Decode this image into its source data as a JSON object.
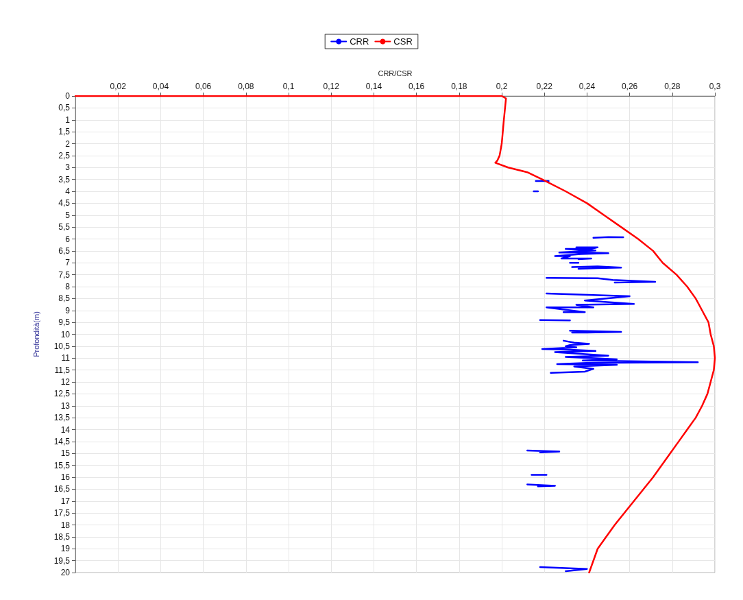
{
  "chart_data": {
    "type": "line",
    "xlabel": "CRR/CSR",
    "ylabel": "Profondità(m)",
    "xlim": [
      0,
      0.3
    ],
    "ylim": [
      20,
      0
    ],
    "xticks": [
      {
        "value": 0.02,
        "label": "0,02"
      },
      {
        "value": 0.04,
        "label": "0,04"
      },
      {
        "value": 0.06,
        "label": "0,06"
      },
      {
        "value": 0.08,
        "label": "0,08"
      },
      {
        "value": 0.1,
        "label": "0,1"
      },
      {
        "value": 0.12,
        "label": "0,12"
      },
      {
        "value": 0.14,
        "label": "0,14"
      },
      {
        "value": 0.16,
        "label": "0,16"
      },
      {
        "value": 0.18,
        "label": "0,18"
      },
      {
        "value": 0.2,
        "label": "0,2"
      },
      {
        "value": 0.22,
        "label": "0,22"
      },
      {
        "value": 0.24,
        "label": "0,24"
      },
      {
        "value": 0.26,
        "label": "0,26"
      },
      {
        "value": 0.28,
        "label": "0,28"
      },
      {
        "value": 0.3,
        "label": "0,3"
      }
    ],
    "yticks": [
      0,
      {
        "value": 0.5,
        "label": "0,5"
      },
      1,
      {
        "value": 1.5,
        "label": "1,5"
      },
      2,
      {
        "value": 2.5,
        "label": "2,5"
      },
      3,
      {
        "value": 3.5,
        "label": "3,5"
      },
      4,
      {
        "value": 4.5,
        "label": "4,5"
      },
      5,
      {
        "value": 5.5,
        "label": "5,5"
      },
      6,
      {
        "value": 6.5,
        "label": "6,5"
      },
      7,
      {
        "value": 7.5,
        "label": "7,5"
      },
      8,
      {
        "value": 8.5,
        "label": "8,5"
      },
      9,
      {
        "value": 9.5,
        "label": "9,5"
      },
      10,
      {
        "value": 10.5,
        "label": "10,5"
      },
      11,
      {
        "value": 11.5,
        "label": "11,5"
      },
      12,
      {
        "value": 12.5,
        "label": "12,5"
      },
      13,
      {
        "value": 13.5,
        "label": "13,5"
      },
      14,
      {
        "value": 14.5,
        "label": "14,5"
      },
      15,
      {
        "value": 15.5,
        "label": "15,5"
      },
      16,
      {
        "value": 16.5,
        "label": "16,5"
      },
      17,
      {
        "value": 17.5,
        "label": "17,5"
      },
      18,
      {
        "value": 18.5,
        "label": "18,5"
      },
      19,
      {
        "value": 19.5,
        "label": "19,5"
      },
      20
    ],
    "grid": true,
    "legend": "top",
    "marker": "none",
    "line_style": "solid",
    "series": [
      {
        "name": "CRR",
        "color": "#0000ff",
        "x": [
          0.216,
          0.222,
          null,
          0.215,
          0.217,
          null,
          0.243,
          0.25,
          0.257,
          null,
          0.235,
          0.245,
          0.242,
          0.23,
          0.238,
          0.244,
          0.227,
          0.24,
          0.25,
          0.237,
          0.225,
          0.232,
          0.228,
          0.242,
          0.236,
          null,
          0.232,
          0.236,
          null,
          0.233,
          0.245,
          0.256,
          0.245,
          0.236,
          null,
          0.221,
          0.245,
          0.252,
          0.272,
          0.253,
          null,
          0.221,
          0.26,
          0.239,
          0.262,
          0.235,
          0.243,
          0.221,
          0.239,
          0.229,
          null,
          0.218,
          0.232,
          null,
          0.232,
          0.256,
          0.24,
          0.233,
          null,
          0.229,
          0.234,
          0.241,
          0.232,
          0.23,
          0.235,
          0.219,
          0.232,
          0.244,
          0.225,
          0.25,
          0.23,
          0.254,
          0.238,
          0.292,
          0.24,
          0.226,
          0.254,
          0.234,
          0.243,
          0.239,
          0.223,
          null,
          0.212,
          0.227,
          0.218,
          null,
          0.214,
          0.221,
          null,
          0.212,
          0.225,
          0.217,
          null,
          0.218,
          0.24,
          0.23
        ],
        "values": [
          3.57,
          3.57,
          null,
          4.0,
          4.0,
          null,
          5.95,
          5.92,
          5.93,
          null,
          6.35,
          6.35,
          6.42,
          6.42,
          6.48,
          6.48,
          6.57,
          6.57,
          6.6,
          6.63,
          6.72,
          6.72,
          6.82,
          6.82,
          6.85,
          null,
          7.0,
          7.0,
          null,
          7.18,
          7.15,
          7.2,
          7.22,
          7.25,
          null,
          7.63,
          7.65,
          7.72,
          7.8,
          7.83,
          null,
          8.29,
          8.4,
          8.58,
          8.73,
          8.76,
          8.87,
          8.87,
          9.07,
          9.07,
          null,
          9.4,
          9.42,
          null,
          9.85,
          9.9,
          9.93,
          9.93,
          null,
          10.27,
          10.35,
          10.4,
          10.45,
          10.5,
          10.55,
          10.62,
          10.65,
          10.7,
          10.75,
          10.9,
          10.95,
          11.05,
          11.1,
          11.17,
          11.2,
          11.25,
          11.28,
          11.35,
          11.45,
          11.57,
          11.62,
          null,
          14.88,
          14.92,
          14.96,
          null,
          15.9,
          15.9,
          null,
          16.3,
          16.36,
          16.38,
          null,
          19.77,
          19.85,
          19.94
        ]
      },
      {
        "name": "CSR",
        "color": "#ff0000",
        "x": [
          0,
          0.2,
          0.202,
          0.201,
          0.2,
          0.199,
          0.198,
          0.197,
          0.203,
          0.212,
          0.219,
          0.23,
          0.24,
          0.248,
          0.256,
          0.264,
          0.271,
          0.2755,
          0.282,
          0.287,
          0.291,
          0.294,
          0.297,
          0.298,
          0.2995,
          0.3,
          0.2995,
          0.298,
          0.2965,
          0.294,
          0.291,
          0.287,
          0.283,
          0.279,
          0.271,
          0.262,
          0.253,
          0.245,
          0.241
        ],
        "values": [
          0,
          0,
          0.1,
          1,
          2,
          2.5,
          2.7,
          2.8,
          3,
          3.2,
          3.5,
          4,
          4.5,
          5,
          5.5,
          6,
          6.5,
          7,
          7.5,
          8,
          8.5,
          9,
          9.5,
          10,
          10.5,
          11,
          11.5,
          12,
          12.5,
          13,
          13.5,
          14,
          14.5,
          15,
          16,
          17,
          18,
          19,
          20
        ]
      }
    ]
  }
}
